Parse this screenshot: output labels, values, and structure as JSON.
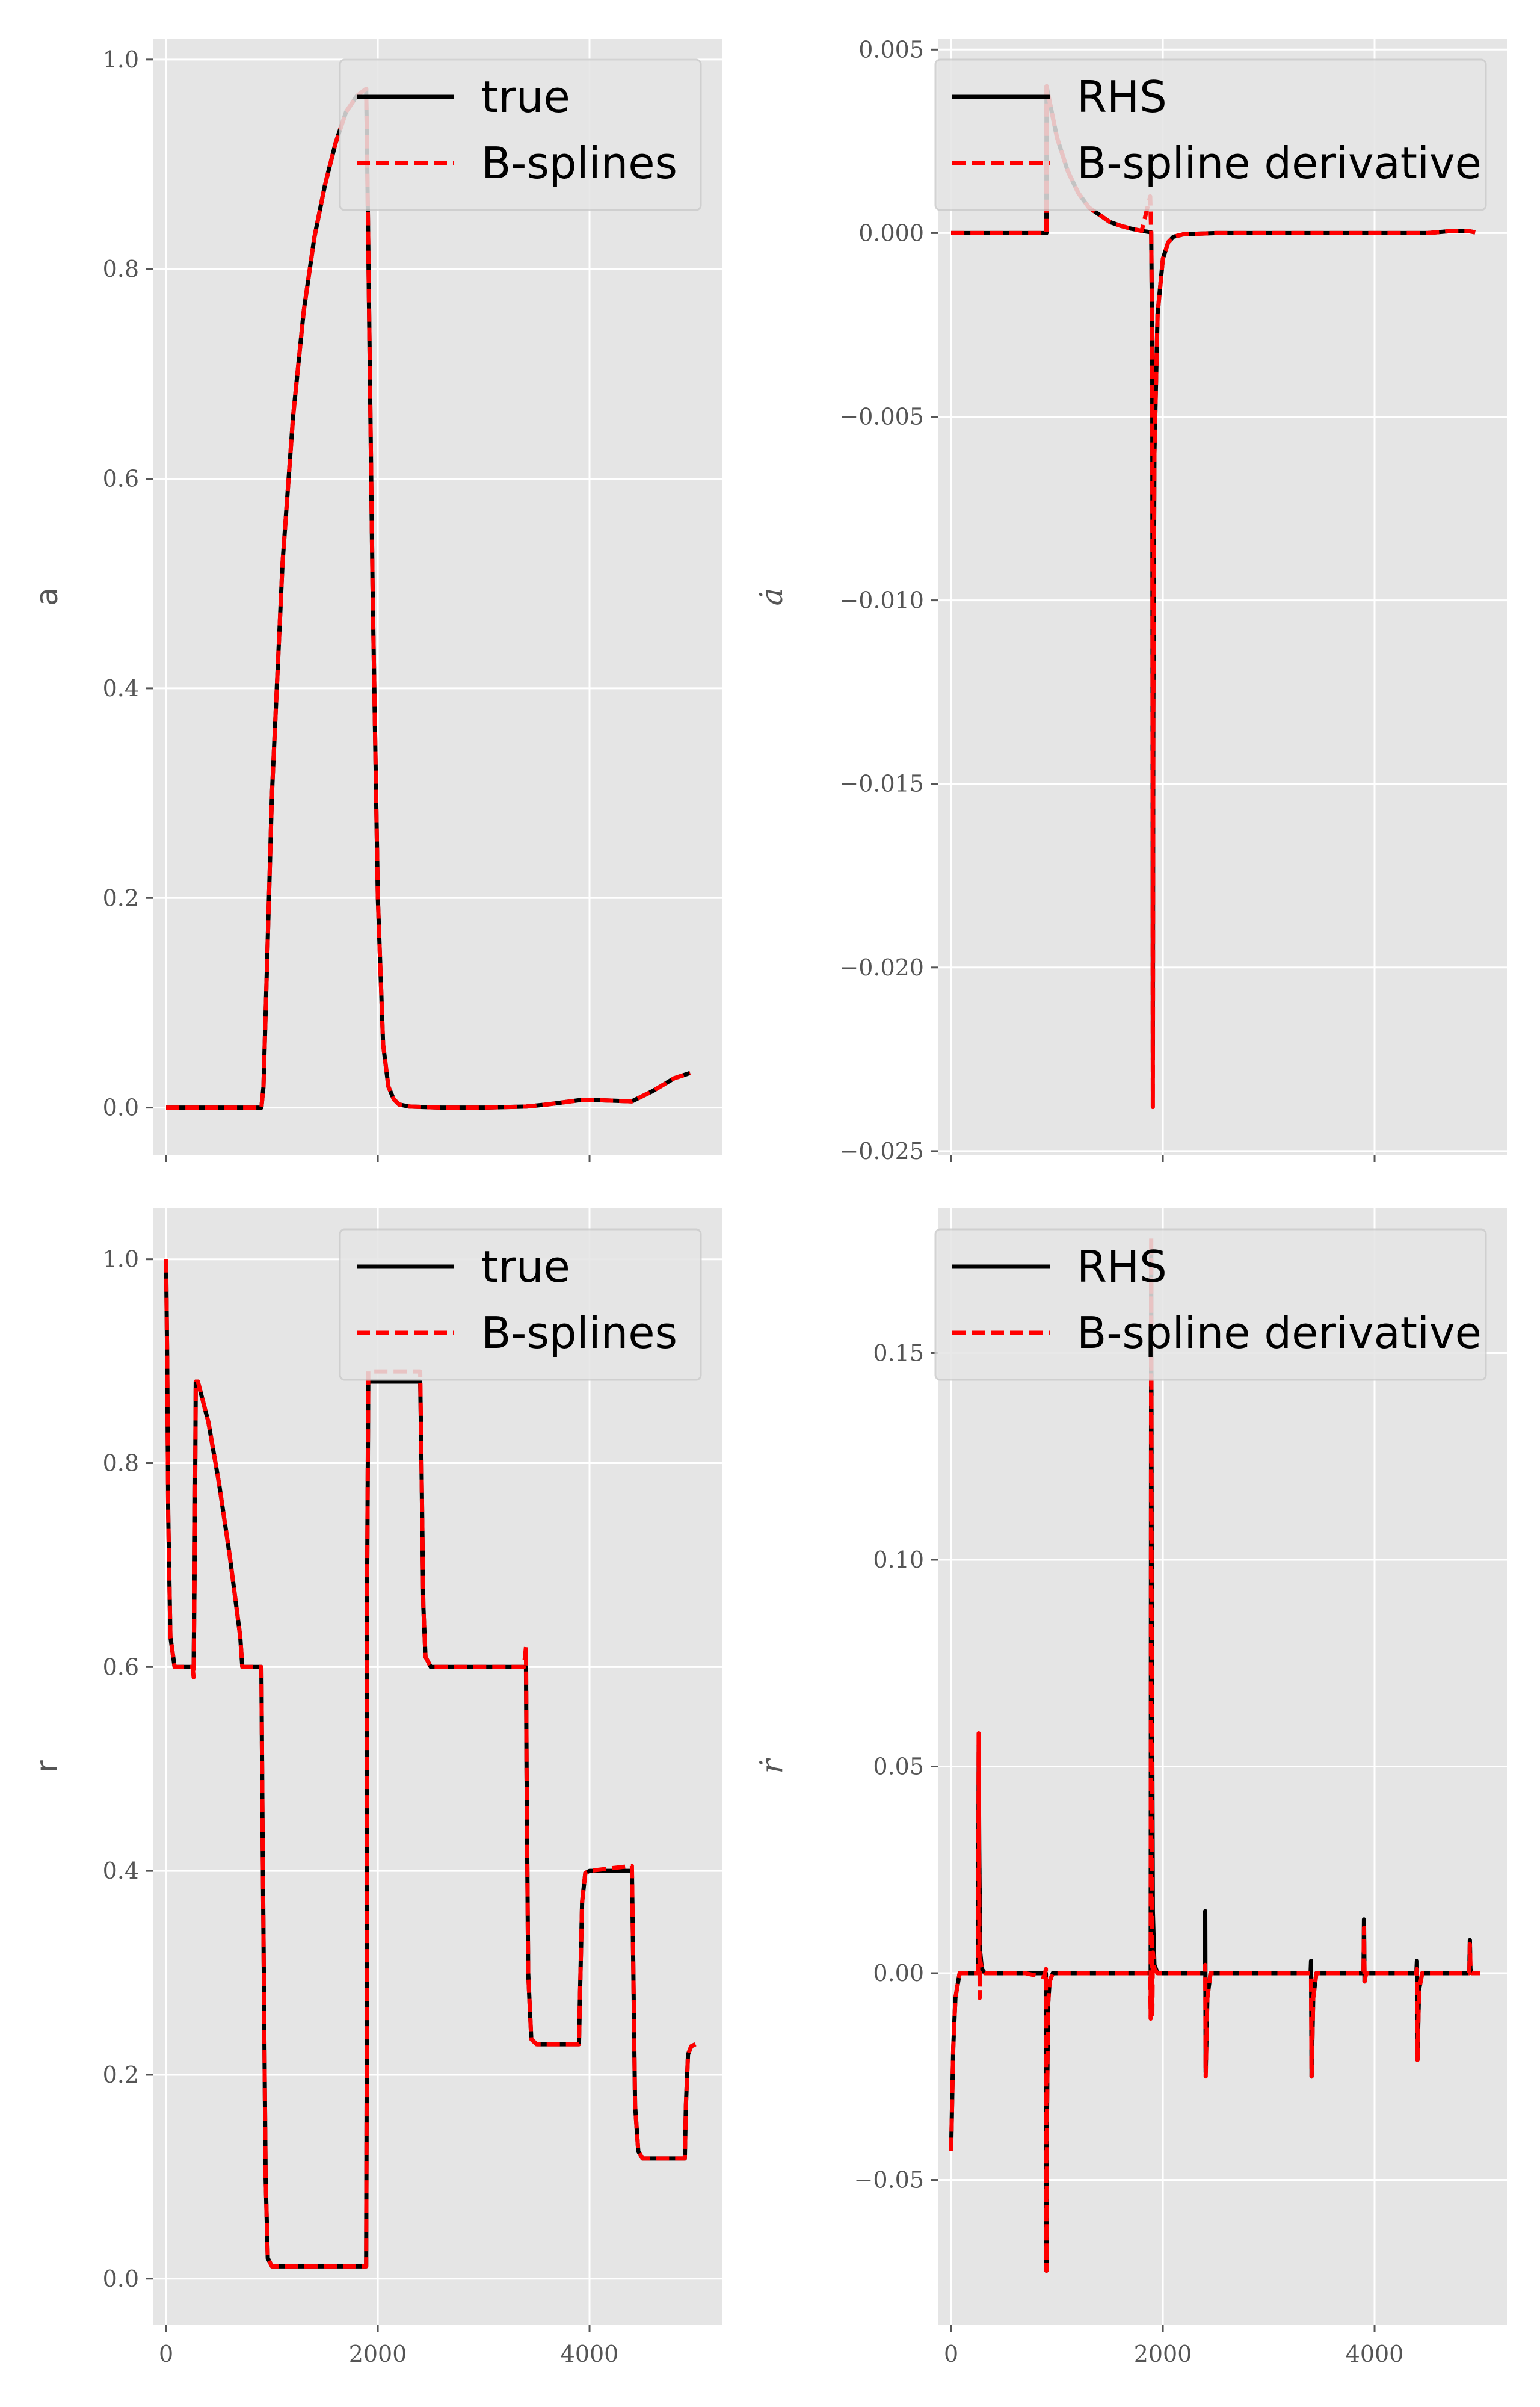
{
  "colors": {
    "plot_bg": "#e5e5e5",
    "grid": "#ffffff",
    "true_line": "#000000",
    "spline_line": "#ff0000",
    "tick": "#555555"
  },
  "chart_data": [
    {
      "type": "line",
      "panel": "top-left",
      "ylabel": "a",
      "ylabel_math": false,
      "xlim": [
        -120,
        5250
      ],
      "ylim": [
        -0.045,
        1.02
      ],
      "xticks": [
        0,
        2000,
        4000
      ],
      "show_xtick_labels": false,
      "yticks": [
        0.0,
        0.2,
        0.4,
        0.6,
        0.8,
        1.0
      ],
      "ytick_labels": [
        "0.0",
        "0.2",
        "0.4",
        "0.6",
        "0.8",
        "1.0"
      ],
      "grid": true,
      "legend": {
        "placement": "top-right",
        "entries": [
          "true",
          "B-splines"
        ]
      },
      "series": [
        {
          "name": "true",
          "style": "solid",
          "x": [
            0,
            900,
            920,
            1000,
            1100,
            1200,
            1300,
            1400,
            1500,
            1600,
            1700,
            1800,
            1890,
            1900,
            1950,
            2000,
            2050,
            2100,
            2150,
            2200,
            2300,
            2600,
            3000,
            3400,
            3600,
            3900,
            4100,
            4400,
            4600,
            4800,
            4950
          ],
          "y": [
            0,
            0,
            0.02,
            0.3,
            0.52,
            0.66,
            0.76,
            0.83,
            0.88,
            0.92,
            0.95,
            0.965,
            0.972,
            0.9,
            0.5,
            0.2,
            0.06,
            0.02,
            0.008,
            0.003,
            0.001,
            0,
            0,
            0.001,
            0.003,
            0.007,
            0.007,
            0.006,
            0.016,
            0.028,
            0.033
          ]
        },
        {
          "name": "B-splines",
          "style": "dashed",
          "x": [
            0,
            900,
            920,
            1000,
            1100,
            1200,
            1300,
            1400,
            1500,
            1600,
            1700,
            1800,
            1890,
            1900,
            1950,
            2000,
            2050,
            2100,
            2150,
            2200,
            2300,
            2600,
            3000,
            3400,
            3600,
            3900,
            4100,
            4400,
            4600,
            4800,
            4950
          ],
          "y": [
            0,
            0,
            0.02,
            0.3,
            0.52,
            0.66,
            0.76,
            0.83,
            0.88,
            0.92,
            0.95,
            0.965,
            0.972,
            0.9,
            0.5,
            0.2,
            0.06,
            0.02,
            0.008,
            0.003,
            0.001,
            0,
            0,
            0.001,
            0.003,
            0.007,
            0.007,
            0.006,
            0.016,
            0.028,
            0.033
          ]
        }
      ]
    },
    {
      "type": "line",
      "panel": "top-right",
      "ylabel": "ȧ",
      "ylabel_math": true,
      "xlim": [
        -120,
        5250
      ],
      "ylim": [
        -0.0251,
        0.0053
      ],
      "xticks": [
        0,
        2000,
        4000
      ],
      "show_xtick_labels": false,
      "yticks": [
        -0.025,
        -0.02,
        -0.015,
        -0.01,
        -0.005,
        0.0,
        0.005
      ],
      "ytick_labels": [
        "−0.025",
        "−0.020",
        "−0.015",
        "−0.010",
        "−0.005",
        "0.000",
        "0.005"
      ],
      "grid": true,
      "legend": {
        "placement": "top-right",
        "entries": [
          "RHS",
          "B-spline derivative"
        ]
      },
      "series": [
        {
          "name": "RHS",
          "style": "solid",
          "x": [
            0,
            900,
            901,
            950,
            1000,
            1100,
            1200,
            1300,
            1400,
            1500,
            1600,
            1700,
            1800,
            1890,
            1900,
            1905,
            1910,
            1920,
            1950,
            2000,
            2050,
            2100,
            2200,
            2500,
            3500,
            4500,
            4700,
            4900,
            4950
          ],
          "y": [
            0,
            0,
            0.004,
            0.0033,
            0.0026,
            0.0017,
            0.0011,
            0.0007,
            0.0005,
            0.0003,
            0.0002,
            0.00012,
            6e-05,
            2e-05,
            -0.0035,
            -0.0225,
            -0.013,
            -0.006,
            -0.0022,
            -0.0007,
            -0.00025,
            -0.0001,
            -3e-05,
            0,
            0,
            0,
            5e-05,
            5e-05,
            2e-05
          ]
        },
        {
          "name": "B-spline derivative",
          "style": "dashed",
          "x": [
            0,
            900,
            901,
            950,
            1000,
            1100,
            1200,
            1300,
            1400,
            1500,
            1600,
            1700,
            1800,
            1880,
            1890,
            1900,
            1905,
            1910,
            1920,
            1950,
            2000,
            2050,
            2100,
            2200,
            2500,
            3500,
            4500,
            4700,
            4900,
            4950
          ],
          "y": [
            0,
            0,
            0.004,
            0.0033,
            0.0026,
            0.0017,
            0.0011,
            0.0007,
            0.0005,
            0.0003,
            0.0002,
            0.00012,
            6e-05,
            0.001,
            2e-05,
            -0.0035,
            -0.0238,
            -0.013,
            -0.006,
            -0.0022,
            -0.0007,
            -0.00025,
            -0.0001,
            -3e-05,
            0,
            0,
            0,
            5e-05,
            5e-05,
            2e-05
          ]
        }
      ]
    },
    {
      "type": "line",
      "panel": "bottom-left",
      "ylabel": "r",
      "ylabel_math": false,
      "xlim": [
        -120,
        5250
      ],
      "ylim": [
        -0.045,
        1.05
      ],
      "xticks": [
        0,
        2000,
        4000
      ],
      "xtick_labels": [
        "0",
        "2000",
        "4000"
      ],
      "show_xtick_labels": true,
      "yticks": [
        0.0,
        0.2,
        0.4,
        0.6,
        0.8,
        1.0
      ],
      "ytick_labels": [
        "0.0",
        "0.2",
        "0.4",
        "0.6",
        "0.8",
        "1.0"
      ],
      "grid": true,
      "legend": {
        "placement": "top-right",
        "entries": [
          "true",
          "B-splines"
        ]
      },
      "series": [
        {
          "name": "true",
          "style": "solid",
          "x": [
            0,
            10,
            20,
            40,
            80,
            260,
            270,
            280,
            300,
            400,
            500,
            600,
            700,
            720,
            900,
            910,
            940,
            960,
            1000,
            1890,
            1895,
            1900,
            1910,
            2400,
            2410,
            2430,
            2450,
            2500,
            3400,
            3405,
            3420,
            3450,
            3500,
            3900,
            3910,
            3930,
            3960,
            4000,
            4400,
            4410,
            4430,
            4460,
            4500,
            4900,
            4910,
            4930,
            4960,
            5000
          ],
          "y": [
            1.0,
            0.9,
            0.75,
            0.63,
            0.6,
            0.6,
            0.7,
            0.88,
            0.88,
            0.84,
            0.78,
            0.71,
            0.63,
            0.6,
            0.6,
            0.45,
            0.1,
            0.02,
            0.012,
            0.012,
            0.2,
            0.7,
            0.88,
            0.88,
            0.82,
            0.66,
            0.61,
            0.6,
            0.6,
            0.5,
            0.3,
            0.235,
            0.23,
            0.23,
            0.28,
            0.37,
            0.398,
            0.4,
            0.4,
            0.33,
            0.17,
            0.125,
            0.118,
            0.118,
            0.17,
            0.22,
            0.228,
            0.23
          ]
        },
        {
          "name": "B-splines",
          "style": "dashed",
          "x": [
            0,
            10,
            20,
            40,
            80,
            250,
            260,
            270,
            280,
            300,
            400,
            500,
            600,
            700,
            720,
            900,
            910,
            940,
            960,
            1000,
            1890,
            1895,
            1900,
            1910,
            2400,
            2410,
            2430,
            2450,
            2500,
            3380,
            3400,
            3405,
            3420,
            3450,
            3500,
            3900,
            3910,
            3930,
            3960,
            4000,
            4400,
            4410,
            4430,
            4460,
            4500,
            4900,
            4910,
            4930,
            4960,
            5000
          ],
          "y": [
            1.0,
            0.9,
            0.75,
            0.63,
            0.6,
            0.6,
            0.59,
            0.7,
            0.88,
            0.88,
            0.84,
            0.78,
            0.71,
            0.63,
            0.6,
            0.6,
            0.45,
            0.1,
            0.02,
            0.012,
            0.012,
            0.2,
            0.7,
            0.89,
            0.89,
            0.82,
            0.66,
            0.61,
            0.6,
            0.6,
            0.62,
            0.5,
            0.3,
            0.235,
            0.23,
            0.23,
            0.28,
            0.37,
            0.398,
            0.4,
            0.405,
            0.33,
            0.17,
            0.125,
            0.118,
            0.118,
            0.17,
            0.22,
            0.228,
            0.23
          ]
        }
      ]
    },
    {
      "type": "line",
      "panel": "bottom-right",
      "ylabel": "ṙ",
      "ylabel_math": true,
      "xlim": [
        -120,
        5250
      ],
      "ylim": [
        -0.085,
        0.185
      ],
      "xticks": [
        0,
        2000,
        4000
      ],
      "xtick_labels": [
        "0",
        "2000",
        "4000"
      ],
      "show_xtick_labels": true,
      "yticks": [
        -0.05,
        0.0,
        0.05,
        0.1,
        0.15
      ],
      "ytick_labels": [
        "−0.05",
        "0.00",
        "0.05",
        "0.10",
        "0.15"
      ],
      "grid": true,
      "legend": {
        "placement": "top-right",
        "entries": [
          "RHS",
          "B-spline derivative"
        ]
      },
      "series": [
        {
          "name": "RHS",
          "style": "solid",
          "x": [
            0,
            10,
            20,
            40,
            80,
            255,
            260,
            265,
            275,
            290,
            320,
            700,
            895,
            900,
            905,
            915,
            930,
            960,
            1000,
            1885,
            1890,
            1895,
            1905,
            1920,
            1950,
            2380,
            2395,
            2400,
            2405,
            2420,
            2450,
            3380,
            3395,
            3400,
            3405,
            3420,
            3450,
            3880,
            3895,
            3900,
            3905,
            3920,
            3950,
            4380,
            4395,
            4400,
            4405,
            4420,
            4450,
            4880,
            4895,
            4900,
            4905,
            4920,
            4950,
            5000
          ],
          "y": [
            -0.043,
            -0.03,
            -0.018,
            -0.006,
            0,
            0,
            0.055,
            0.03,
            0.005,
            0.001,
            0,
            0,
            0,
            -0.072,
            -0.035,
            -0.008,
            -0.002,
            0,
            0,
            0,
            0.175,
            0.09,
            0.015,
            0.002,
            0,
            0,
            0,
            0.015,
            -0.024,
            -0.006,
            0,
            0,
            0,
            0.003,
            -0.025,
            -0.006,
            0,
            0,
            0,
            0.013,
            -0.002,
            0,
            0,
            0,
            0,
            0.003,
            -0.021,
            -0.004,
            0,
            0,
            0,
            0.008,
            0.001,
            0,
            0,
            0
          ]
        },
        {
          "name": "B-spline derivative",
          "style": "dashed",
          "x": [
            0,
            10,
            20,
            40,
            80,
            255,
            260,
            265,
            270,
            275,
            290,
            320,
            700,
            880,
            895,
            900,
            905,
            915,
            930,
            960,
            1000,
            1880,
            1885,
            1890,
            1895,
            1900,
            1905,
            1920,
            1950,
            2380,
            2395,
            2400,
            2405,
            2420,
            2450,
            3380,
            3395,
            3400,
            3405,
            3420,
            3450,
            3880,
            3895,
            3900,
            3905,
            3920,
            3950,
            4380,
            4395,
            4400,
            4405,
            4420,
            4450,
            4880,
            4895,
            4900,
            4905,
            4920,
            4950,
            5000
          ],
          "y": [
            -0.043,
            -0.03,
            -0.018,
            -0.006,
            0,
            0,
            0.058,
            0.02,
            -0.006,
            0.003,
            0.001,
            0,
            0,
            -0.001,
            0.001,
            -0.072,
            -0.035,
            -0.008,
            -0.002,
            0,
            0,
            0,
            -0.011,
            0.178,
            0.06,
            -0.01,
            0.005,
            0.001,
            0,
            0,
            0,
            0.002,
            -0.025,
            -0.006,
            0,
            0,
            0,
            -0.001,
            -0.025,
            -0.006,
            0,
            0,
            0,
            0.011,
            -0.002,
            0,
            0,
            0,
            0,
            0.001,
            -0.021,
            -0.004,
            0,
            0,
            0,
            0.007,
            0.002,
            0,
            0,
            0
          ]
        }
      ]
    }
  ]
}
